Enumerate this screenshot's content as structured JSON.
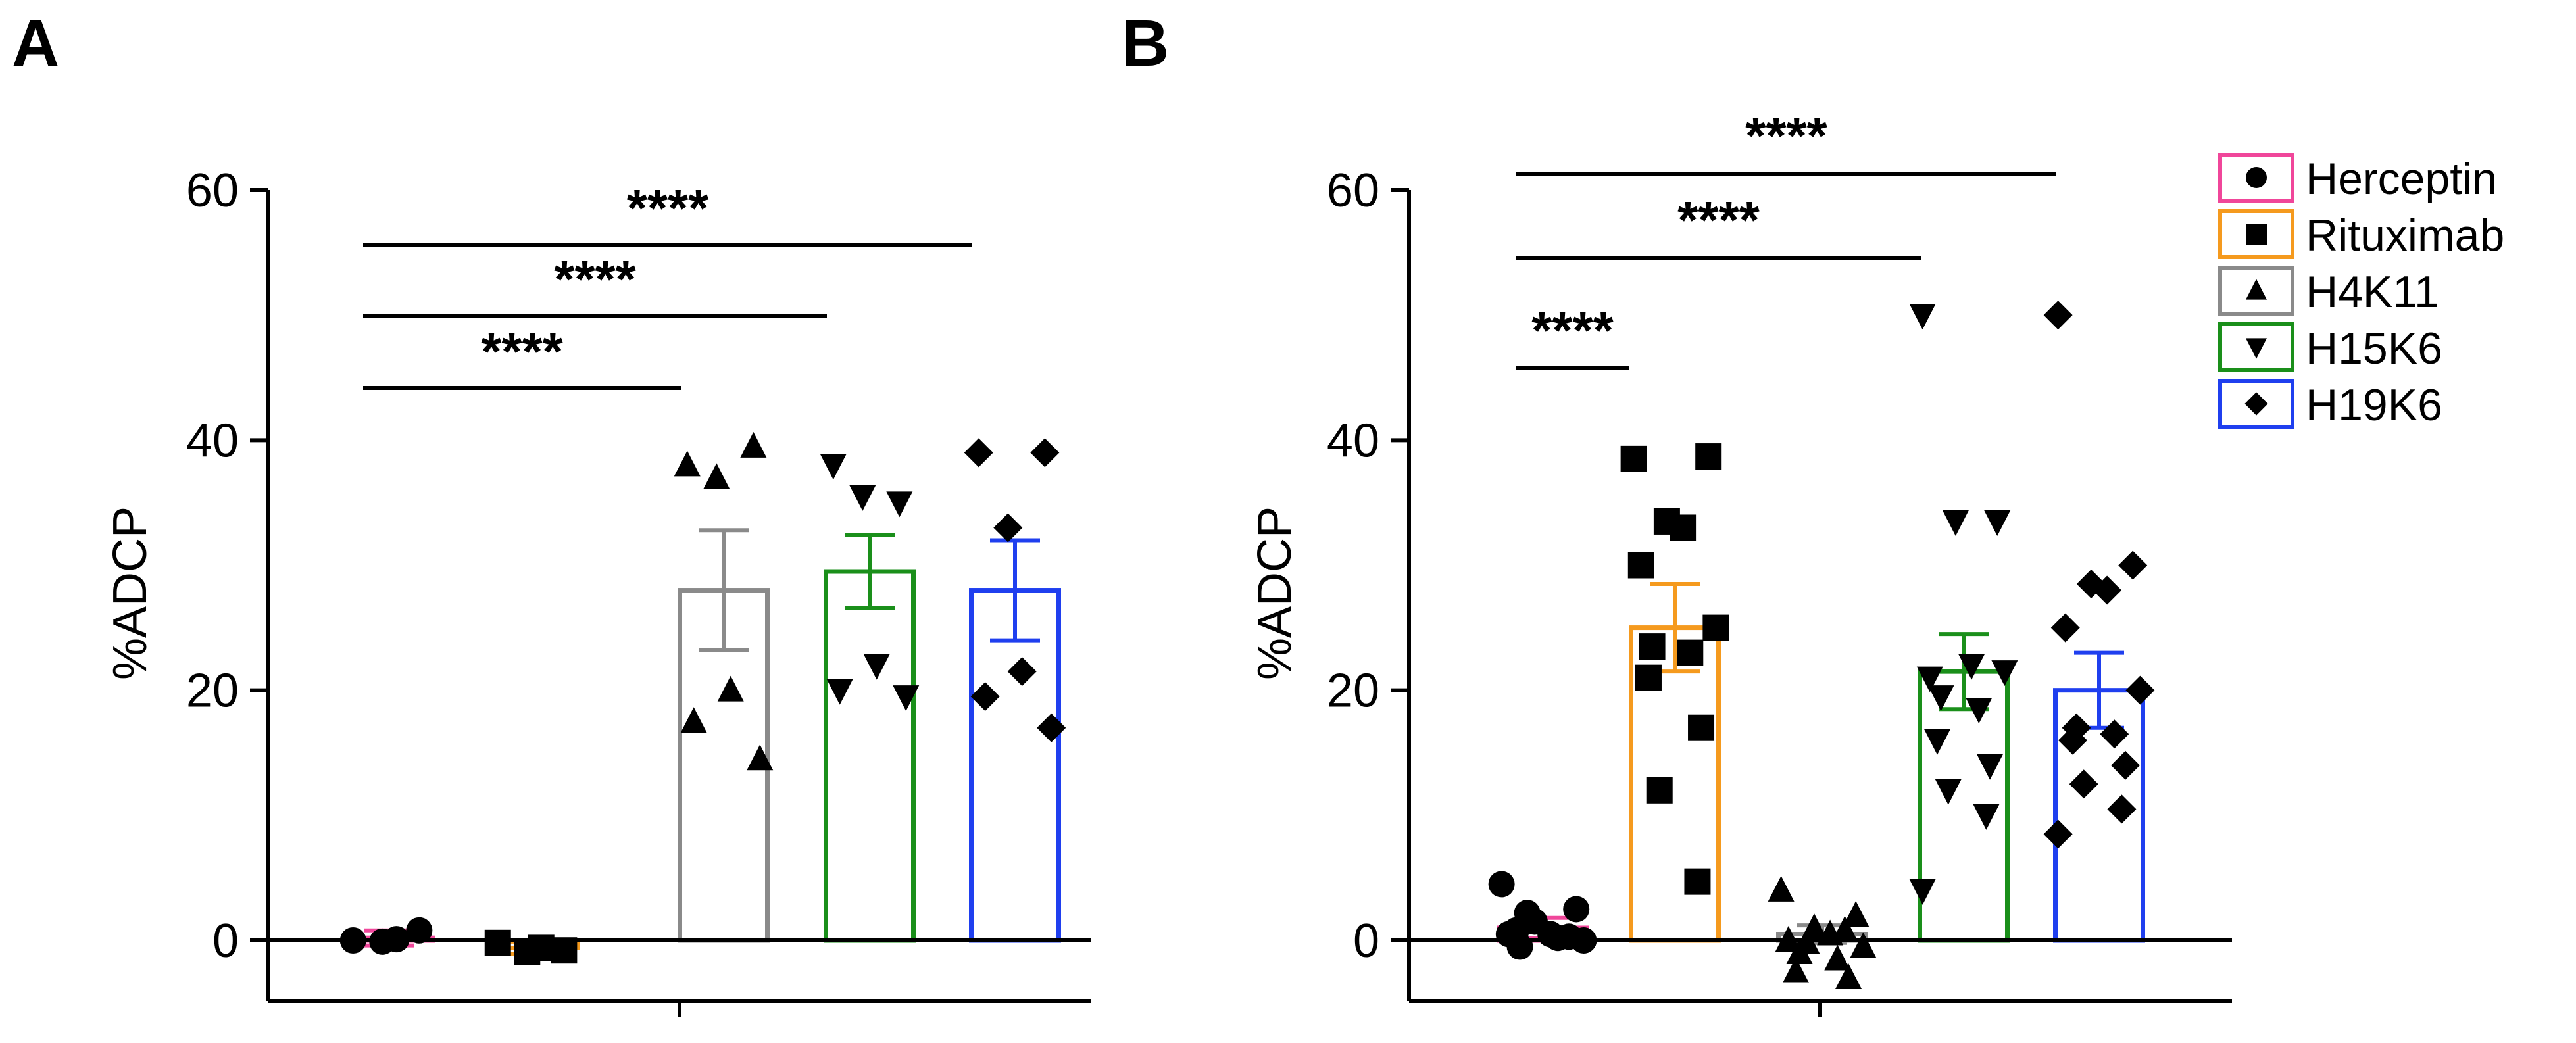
{
  "colors": {
    "Herceptin": "#f0469a",
    "Rituximab": "#f59a1e",
    "H4K11": "#8a8a8a",
    "H15K6": "#1a8f1a",
    "H19K6": "#1f3fef",
    "points": "#000000",
    "axis": "#000000"
  },
  "legend": [
    {
      "label": "Herceptin",
      "marker": "circle"
    },
    {
      "label": "Rituximab",
      "marker": "square"
    },
    {
      "label": "H4K11",
      "marker": "triangle-up"
    },
    {
      "label": "H15K6",
      "marker": "triangle-down"
    },
    {
      "label": "H19K6",
      "marker": "diamond"
    }
  ],
  "chart_data": [
    {
      "panel": "A",
      "type": "bar",
      "ylabel": "%ADCP",
      "ylim": [
        -5,
        60
      ],
      "yticks": [
        0,
        20,
        40,
        60
      ],
      "categories": [
        "Herceptin",
        "Rituximab",
        "H4K11",
        "H15K6",
        "H19K6"
      ],
      "means": [
        0.2,
        -0.6,
        28,
        29.5,
        28
      ],
      "sem": [
        0.6,
        0.5,
        4.8,
        2.9,
        4.0
      ],
      "points": [
        [
          0,
          0.8,
          -0.1,
          0.1
        ],
        [
          -0.2,
          -0.8,
          -0.9,
          -0.6
        ],
        [
          38,
          39.5,
          37,
          20,
          17.5,
          14.5
        ],
        [
          38,
          35,
          35.5,
          22,
          20,
          19.5
        ],
        [
          39,
          39,
          33,
          21.5,
          19.5,
          17
        ]
      ],
      "significance": [
        {
          "from": 0,
          "to": 2,
          "label": "****"
        },
        {
          "from": 0,
          "to": 3,
          "label": "****"
        },
        {
          "from": 0,
          "to": 4,
          "label": "****"
        }
      ]
    },
    {
      "panel": "B",
      "type": "bar",
      "ylabel": "%ADCP",
      "ylim": [
        -5,
        60
      ],
      "yticks": [
        0,
        20,
        40,
        60
      ],
      "categories": [
        "Herceptin",
        "Rituximab",
        "H4K11",
        "H15K6",
        "H19K6"
      ],
      "means": [
        1,
        25,
        0.5,
        21.5,
        20
      ],
      "sem": [
        0.8,
        3.5,
        0.7,
        3.0,
        3.0
      ],
      "points": [
        [
          4.5,
          2.5,
          1.5,
          0.5,
          0.5,
          0,
          -0.5,
          0.2,
          0.8,
          0.3,
          2.2
        ],
        [
          38.5,
          38.7,
          33.5,
          33,
          30,
          25,
          23.5,
          23,
          21,
          17,
          12,
          4.7
        ],
        [
          4,
          2,
          1,
          0.5,
          0,
          -0.5,
          -1,
          -1.5,
          -2.5,
          -3,
          -0.2,
          0.8
        ],
        [
          50,
          33.5,
          33.5,
          22,
          21,
          21.5,
          19.5,
          18.5,
          16,
          14,
          12,
          10,
          4
        ],
        [
          50,
          30,
          28.5,
          28,
          25,
          20,
          17,
          16.5,
          16,
          14,
          12.5,
          10.5,
          8.5
        ]
      ],
      "significance": [
        {
          "from": 0,
          "to": 1,
          "label": "****"
        },
        {
          "from": 0,
          "to": 3,
          "label": "****"
        },
        {
          "from": 0,
          "to": 4,
          "label": "****"
        }
      ]
    }
  ]
}
